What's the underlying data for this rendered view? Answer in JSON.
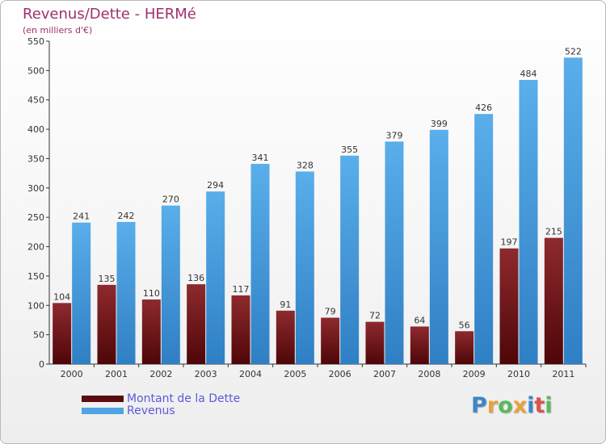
{
  "chart_data": {
    "type": "bar",
    "title": "Revenus/Dette - HERMé",
    "subtitle": "(en milliers d'€)",
    "categories": [
      "2000",
      "2001",
      "2002",
      "2003",
      "2004",
      "2005",
      "2006",
      "2007",
      "2008",
      "2009",
      "2010",
      "2011"
    ],
    "series": [
      {
        "name": "Montant de la Dette",
        "values": [
          104,
          135,
          110,
          136,
          117,
          91,
          79,
          72,
          64,
          56,
          197,
          215
        ],
        "color": "#7a1a1e"
      },
      {
        "name": "Revenus",
        "values": [
          241,
          242,
          270,
          294,
          341,
          328,
          355,
          379,
          399,
          426,
          484,
          522
        ],
        "color": "#4fa4e4"
      }
    ],
    "ylim": [
      0,
      550
    ],
    "yticks": [
      0,
      50,
      100,
      150,
      200,
      250,
      300,
      350,
      400,
      450,
      500,
      550
    ],
    "grid": false,
    "legend_position": "bottom-left"
  },
  "logo": {
    "letters": [
      "P",
      "r",
      "o",
      "x",
      "i",
      "t",
      "i"
    ],
    "colors": [
      "#3e86c6",
      "#e9a23b",
      "#5cb85c",
      "#e9a23b",
      "#3e86c6",
      "#d9534f",
      "#5cb85c"
    ]
  }
}
